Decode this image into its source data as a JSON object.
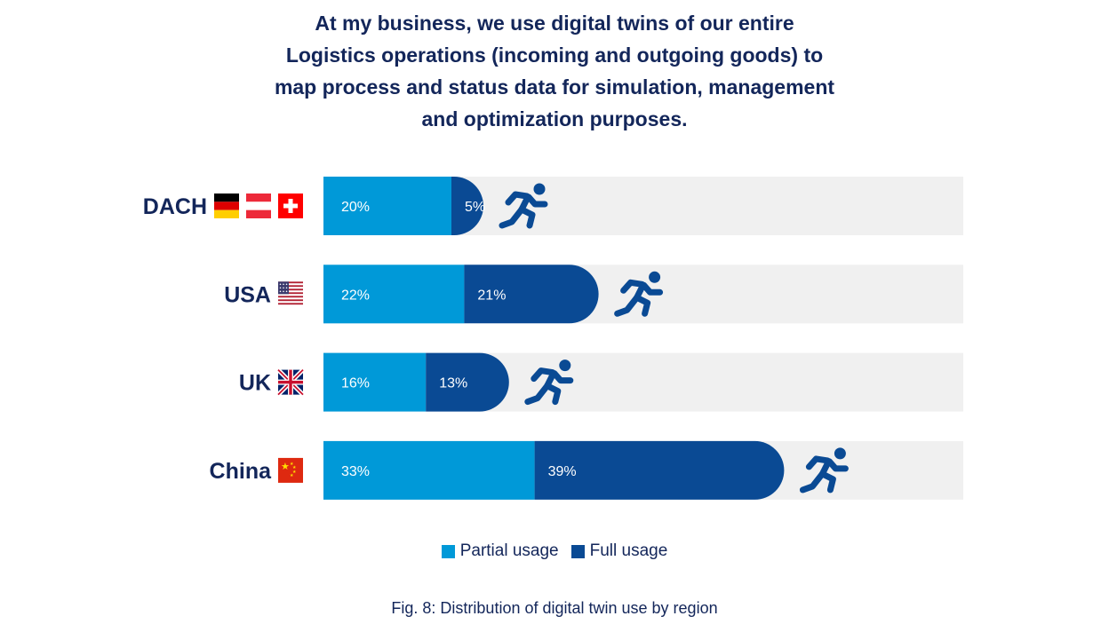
{
  "title_lines": [
    "At my business, we use digital twins of our entire",
    "Logistics operations (incoming and outgoing goods) to",
    "map process and status data for simulation, management",
    "and optimization purposes."
  ],
  "colors": {
    "partial": "#0099d8",
    "full": "#0a4a94",
    "track": "#f0f0f0",
    "text_dark": "#13265a",
    "bar_text": "#ffffff"
  },
  "chart_data": {
    "type": "bar",
    "orientation": "horizontal",
    "stacked": true,
    "categories": [
      "DACH",
      "USA",
      "UK",
      "China"
    ],
    "flags": [
      [
        "germany",
        "austria",
        "switzerland"
      ],
      [
        "usa"
      ],
      [
        "uk"
      ],
      [
        "china"
      ]
    ],
    "series": [
      {
        "name": "Partial usage",
        "values": [
          20,
          22,
          16,
          33
        ],
        "labels": [
          "20%",
          "22%",
          "16%",
          "33%"
        ]
      },
      {
        "name": "Full usage",
        "values": [
          5,
          21,
          13,
          39
        ],
        "labels": [
          "5%",
          "21%",
          "13%",
          "39%"
        ]
      }
    ],
    "xlim": [
      0,
      100
    ],
    "legend": "bottom-center",
    "grid": false,
    "icon": "running-person-icon"
  },
  "legend": {
    "partial_label": "Partial usage",
    "full_label": "Full usage"
  },
  "caption": "Fig. 8: Distribution of digital twin use by region"
}
